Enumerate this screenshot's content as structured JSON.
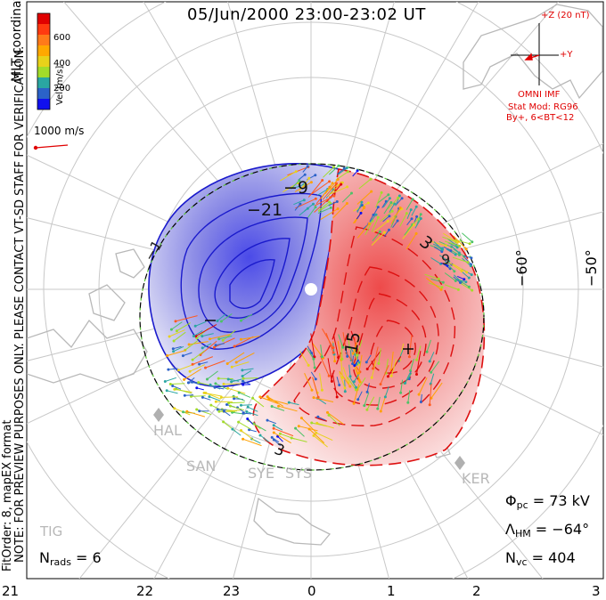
{
  "title": "05/Jun/2000 23:00-23:02 UT",
  "coord_label": "MLT coordinates",
  "colorbar": {
    "label": "Vel [m/s]",
    "ticks": [
      "600",
      "400",
      "200"
    ],
    "colors": [
      "#e00000",
      "#ff5a1f",
      "#ffa000",
      "#e8d21a",
      "#a2dc2a",
      "#4cc266",
      "#2aa6a2",
      "#2b62c8",
      "#1010ee"
    ]
  },
  "scale_vector": {
    "label": "1000 m/s"
  },
  "imf": {
    "z_label": "+Z (20 nT)",
    "y_label": "+Y",
    "source": "OMNI IMF",
    "stat_mod": "Stat Mod: RG96",
    "condition": "By+, 6<BT<12"
  },
  "note": "NOTE: FOR PREVIEW PURPOSES ONLY. PLEASE CONTACT VT-SD STAFF FOR VERIFICATION.",
  "fitorder": "FitOrder: 8, mapEX format",
  "stats": {
    "phi_pc": "Φ",
    "phi_sub": "pc",
    "phi_value": " = 73 kV",
    "lambda_hm": "Λ",
    "lambda_sub": "HM",
    "lambda_value": " = −64°",
    "n_vc": "N",
    "n_vc_sub": "vc",
    "n_vc_value": " = 404",
    "n_rads": "N",
    "n_rads_sub": "rads",
    "n_rads_value": " = 6"
  },
  "latitude_labels": [
    "−60°",
    "−50°"
  ],
  "mlt_labels": [
    "21",
    "22",
    "23",
    "0",
    "1",
    "2",
    "3"
  ],
  "contour_labels": [
    "−9",
    "−21",
    "−1",
    "3",
    "9",
    "15",
    "3"
  ],
  "radars": [
    "HAL",
    "SAN",
    "SYE",
    "SYS",
    "KER",
    "TIG"
  ],
  "colors": {
    "negative_potential": "#2020d0",
    "positive_potential": "#e01010",
    "hmb": "#5cc43a"
  }
}
